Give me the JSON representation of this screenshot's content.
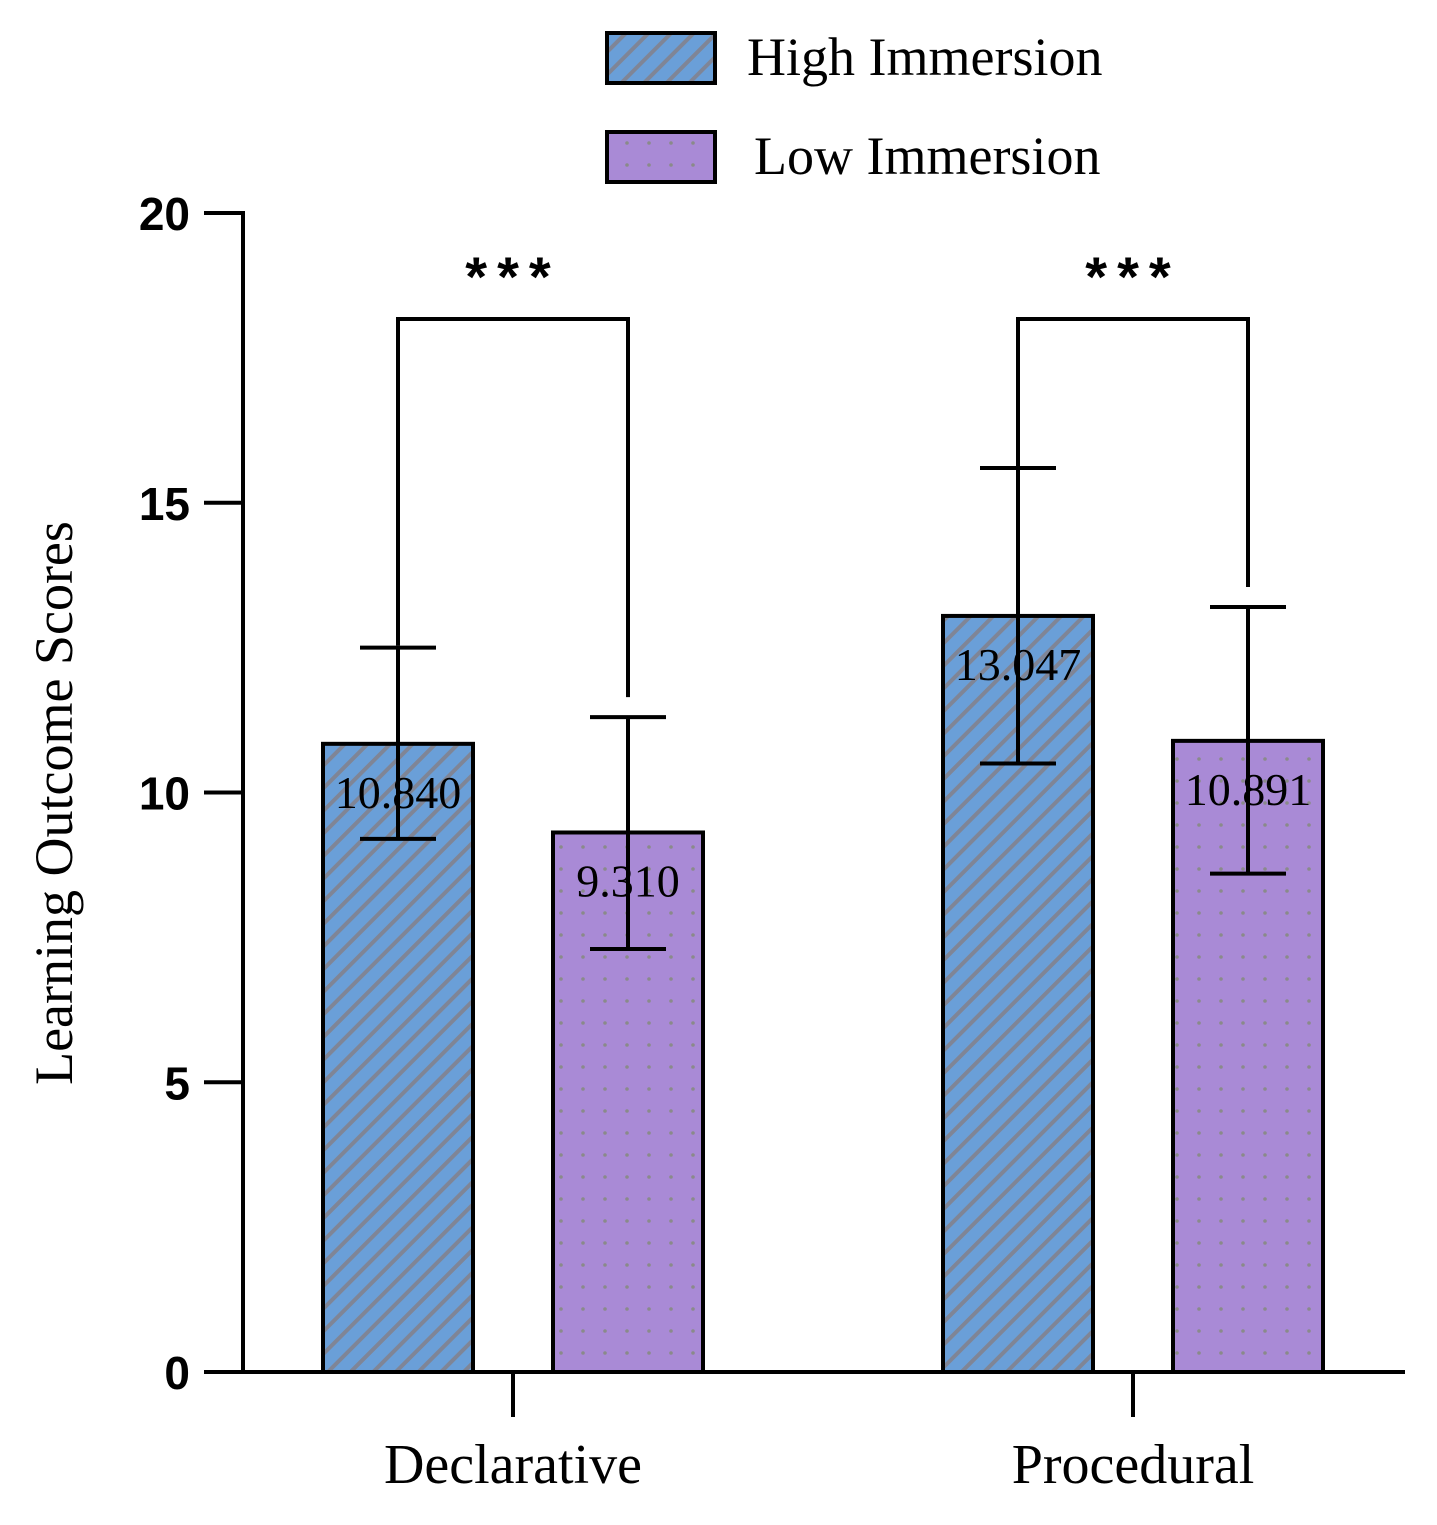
{
  "chart_data": {
    "type": "bar",
    "categories": [
      "Declarative",
      "Procedural"
    ],
    "series": [
      {
        "name": "High Immersion",
        "values": [
          10.84,
          13.047
        ],
        "error_low": [
          9.2,
          10.5
        ],
        "error_high": [
          12.5,
          15.6
        ],
        "value_labels": [
          "10.840",
          "13.047"
        ],
        "color": "#6a9fd8",
        "pattern": "diagonal-stripes"
      },
      {
        "name": "Low Immersion",
        "values": [
          9.31,
          10.891
        ],
        "error_low": [
          7.3,
          8.6
        ],
        "error_high": [
          11.3,
          13.2
        ],
        "value_labels": [
          "9.310",
          "10.891"
        ],
        "color": "#a98ad6",
        "pattern": "dots"
      }
    ],
    "ylabel": "Learning Outcome Scores",
    "xlabel": "",
    "ylim": [
      0,
      20
    ],
    "yticks": [
      "0",
      "5",
      "10",
      "15",
      "20"
    ],
    "significance": [
      {
        "category": "Declarative",
        "label": "***"
      },
      {
        "category": "Procedural",
        "label": "***"
      }
    ],
    "legend_position": "top-right",
    "grid": false
  }
}
